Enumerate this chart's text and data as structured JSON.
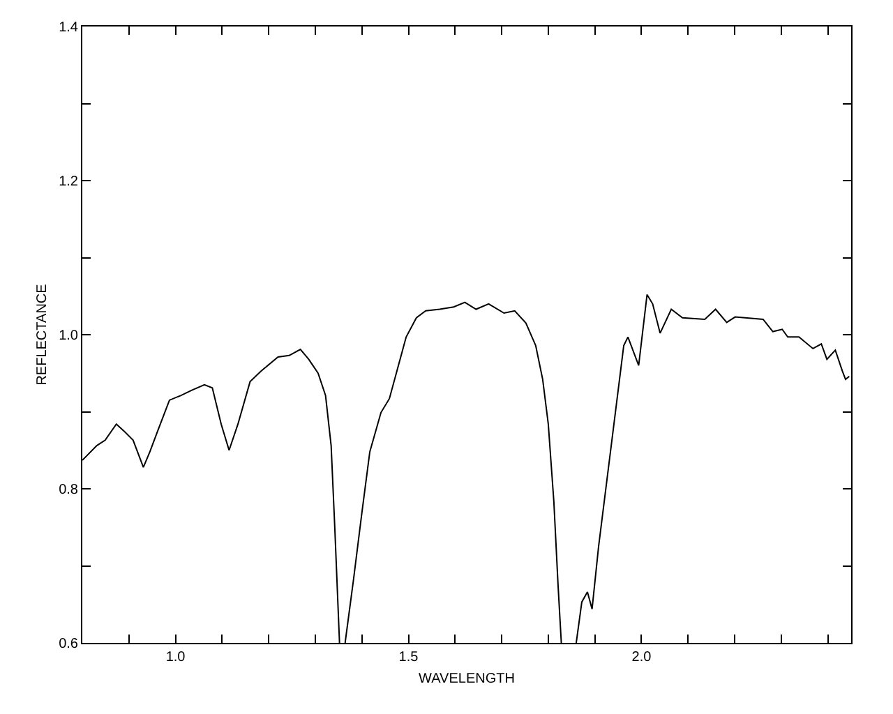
{
  "chart_data": {
    "type": "line",
    "xlabel": "WAVELENGTH",
    "ylabel": "REFLECTANCE",
    "x": [
      0.8,
      0.831,
      0.849,
      0.873,
      0.891,
      0.909,
      0.931,
      0.945,
      0.963,
      0.987,
      1.011,
      1.035,
      1.062,
      1.079,
      1.098,
      1.115,
      1.134,
      1.16,
      1.184,
      1.22,
      1.244,
      1.268,
      1.286,
      1.306,
      1.322,
      1.334,
      1.342,
      1.352,
      1.358,
      1.364,
      1.382,
      1.4,
      1.417,
      1.441,
      1.459,
      1.477,
      1.495,
      1.517,
      1.537,
      1.567,
      1.597,
      1.621,
      1.645,
      1.672,
      1.705,
      1.728,
      1.752,
      1.773,
      1.788,
      1.8,
      1.812,
      1.821,
      1.828,
      1.844,
      1.86,
      1.872,
      1.884,
      1.894,
      1.908,
      1.926,
      1.944,
      1.962,
      1.971,
      1.994,
      2.012,
      2.024,
      2.04,
      2.064,
      2.088,
      2.136,
      2.159,
      2.183,
      2.201,
      2.261,
      2.282,
      2.302,
      2.314,
      2.338,
      2.368,
      2.386,
      2.398,
      2.416,
      2.431,
      2.438,
      2.446
    ],
    "series": [
      {
        "color": "#000000",
        "values": [
          0.837,
          0.856,
          0.863,
          0.884,
          0.874,
          0.863,
          0.828,
          0.848,
          0.877,
          0.915,
          0.921,
          0.928,
          0.935,
          0.931,
          0.884,
          0.85,
          0.884,
          0.939,
          0.953,
          0.971,
          0.973,
          0.981,
          0.968,
          0.95,
          0.921,
          0.856,
          0.747,
          0.6,
          null,
          0.6,
          0.682,
          0.769,
          0.848,
          0.899,
          0.917,
          0.957,
          0.997,
          1.022,
          1.031,
          1.033,
          1.036,
          1.042,
          1.033,
          1.04,
          1.028,
          1.031,
          1.015,
          0.986,
          0.942,
          0.884,
          0.783,
          0.675,
          0.6,
          null,
          0.6,
          0.653,
          0.666,
          0.644,
          0.725,
          0.812,
          0.899,
          0.986,
          0.997,
          0.96,
          1.052,
          1.04,
          1.002,
          1.033,
          1.022,
          1.02,
          1.033,
          1.016,
          1.023,
          1.02,
          1.004,
          1.007,
          0.997,
          0.997,
          0.982,
          0.988,
          0.968,
          0.98,
          0.953,
          0.942,
          0.946
        ]
      }
    ],
    "xlim": [
      0.8,
      2.45
    ],
    "xticks": [
      {
        "value": 0.9,
        "label": null
      },
      {
        "value": 1,
        "label": "1.0"
      },
      {
        "value": 1.1,
        "label": null
      },
      {
        "value": 1.2,
        "label": null
      },
      {
        "value": 1.3,
        "label": null
      },
      {
        "value": 1.4,
        "label": null
      },
      1.5,
      {
        "value": 1.6,
        "label": null
      },
      {
        "value": 1.7,
        "label": null
      },
      {
        "value": 1.8,
        "label": null
      },
      {
        "value": 1.9,
        "label": null
      },
      {
        "value": 2,
        "label": "2.0"
      },
      {
        "value": 2.1,
        "label": null
      },
      {
        "value": 2.2,
        "label": null
      },
      {
        "value": 2.3,
        "label": null
      },
      {
        "value": 2.4,
        "label": null
      }
    ],
    "ylim": [
      0.6,
      1.4
    ],
    "yticks": [
      0.6,
      {
        "value": 0.7,
        "label": null
      },
      0.8,
      {
        "value": 0.9,
        "label": null
      },
      {
        "value": 1,
        "label": "1.0"
      },
      {
        "value": 1.1,
        "label": null
      },
      1.2,
      {
        "value": 1.3,
        "label": null
      },
      1.4
    ],
    "grid": false,
    "marker": "none",
    "line_style": "solid"
  }
}
